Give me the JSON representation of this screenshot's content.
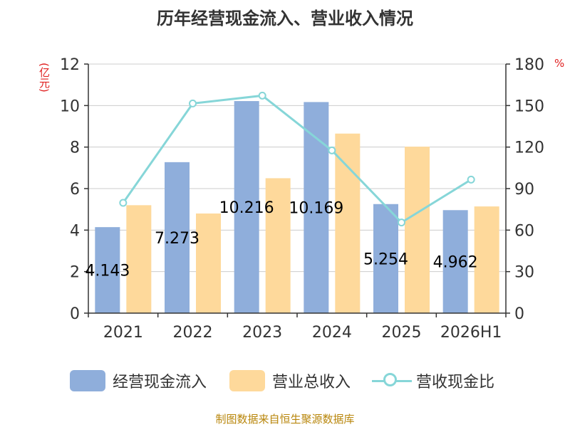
{
  "chart_data": {
    "type": "bar",
    "title": "历年经营现金流入、营业收入情况",
    "categories": [
      "2021",
      "2022",
      "2023",
      "2024",
      "2025",
      "2026H1"
    ],
    "ylabel_left": "(亿元)",
    "ylabel_right": "%",
    "ylim_left": [
      0,
      12
    ],
    "ylim_right": [
      0,
      180
    ],
    "yticks_left": [
      "0",
      "2",
      "4",
      "6",
      "8",
      "10",
      "12"
    ],
    "yticks_right": [
      "0",
      "30",
      "60",
      "90",
      "120",
      "150",
      "180"
    ],
    "grid": true,
    "legend_position": "bottom",
    "series": [
      {
        "name": "经营现金流入",
        "type": "bar",
        "axis": "left",
        "color": "#8faedb",
        "values": [
          4.143,
          7.273,
          10.216,
          10.169,
          5.254,
          4.962
        ],
        "labels": [
          "4.143",
          "7.273",
          "10.216",
          "10.169",
          "5.254",
          "4.962"
        ]
      },
      {
        "name": "营业总收入",
        "type": "bar",
        "axis": "left",
        "color": "#fed99b",
        "values": [
          5.2,
          4.8,
          6.5,
          8.65,
          8.02,
          5.14
        ]
      },
      {
        "name": "营收现金比",
        "type": "line",
        "axis": "right",
        "color": "#86d6d8",
        "values": [
          79.7,
          151.5,
          157.2,
          117.6,
          65.5,
          96.5
        ]
      }
    ]
  },
  "source": "制图数据来自恒生聚源数据库"
}
